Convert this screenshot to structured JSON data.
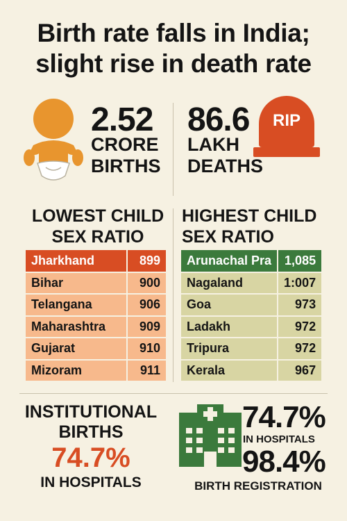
{
  "title": {
    "line1": "Birth rate falls in India;",
    "line2": "slight rise in death rate"
  },
  "births": {
    "value": "2.52",
    "unit": "CRORE",
    "label": "BIRTHS",
    "icon": "baby-icon"
  },
  "deaths": {
    "value": "86.6",
    "unit": "LAKH",
    "label": "DEATHS",
    "icon_text": "RIP",
    "icon": "tombstone-icon"
  },
  "lowest_sex_ratio": {
    "heading_line1": "LOWEST CHILD",
    "heading_line2": "SEX RATIO",
    "rows": [
      {
        "state": "Jharkhand",
        "value": "899"
      },
      {
        "state": "Bihar",
        "value": "900"
      },
      {
        "state": "Telangana",
        "value": "906"
      },
      {
        "state": "Maharashtra",
        "value": "909"
      },
      {
        "state": "Gujarat",
        "value": "910"
      },
      {
        "state": "Mizoram",
        "value": "911"
      }
    ]
  },
  "highest_sex_ratio": {
    "heading_line1": "HIGHEST CHILD",
    "heading_line2": "SEX RATIO",
    "rows": [
      {
        "state": "Arunachal Pra",
        "value": "1,085"
      },
      {
        "state": "Nagaland",
        "value": "1:007"
      },
      {
        "state": "Goa",
        "value": "973"
      },
      {
        "state": "Ladakh",
        "value": "972"
      },
      {
        "state": "Tripura",
        "value": "972"
      },
      {
        "state": "Kerala",
        "value": "967"
      }
    ]
  },
  "institutional": {
    "line1": "INSTITUTIONAL",
    "line2": "BIRTHS",
    "value": "74.7%",
    "label": "IN HOSPITALS"
  },
  "hospital_stats": {
    "icon": "hospital-icon",
    "value1": "74.7%",
    "label1": "IN HOSPITALS",
    "value2": "98.4%",
    "label2": "BIRTH REGISTRATION"
  },
  "colors": {
    "background": "#f6f1e2",
    "orange": "#d84d23",
    "light_orange": "#f7b98c",
    "green": "#3b7a3c",
    "khaki": "#d8d5a3",
    "baby": "#e8952e"
  }
}
